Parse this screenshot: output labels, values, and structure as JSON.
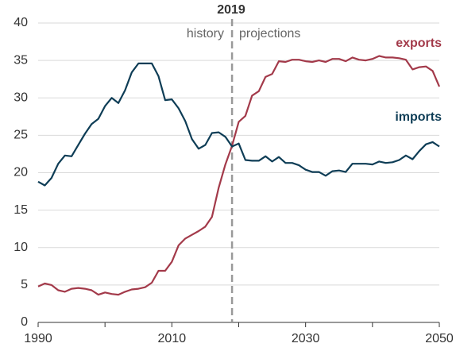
{
  "chart_data": {
    "type": "line",
    "x": [
      1990,
      1991,
      1992,
      1993,
      1994,
      1995,
      1996,
      1997,
      1998,
      1999,
      2000,
      2001,
      2002,
      2003,
      2004,
      2005,
      2006,
      2007,
      2008,
      2009,
      2010,
      2011,
      2012,
      2013,
      2014,
      2015,
      2016,
      2017,
      2018,
      2019,
      2020,
      2021,
      2022,
      2023,
      2024,
      2025,
      2026,
      2027,
      2028,
      2029,
      2030,
      2031,
      2032,
      2033,
      2034,
      2035,
      2036,
      2037,
      2038,
      2039,
      2040,
      2041,
      2042,
      2043,
      2044,
      2045,
      2046,
      2047,
      2048,
      2049,
      2050
    ],
    "series": [
      {
        "name": "exports",
        "color": "#a33a4a",
        "values": [
          4.8,
          5.2,
          5.0,
          4.3,
          4.1,
          4.5,
          4.6,
          4.5,
          4.3,
          3.7,
          4.0,
          3.8,
          3.7,
          4.1,
          4.4,
          4.5,
          4.7,
          5.3,
          6.9,
          6.9,
          8.1,
          10.3,
          11.2,
          11.7,
          12.2,
          12.8,
          14.1,
          18.0,
          21.1,
          23.6,
          26.8,
          27.6,
          30.3,
          30.9,
          32.8,
          33.2,
          34.9,
          34.8,
          35.1,
          35.1,
          34.9,
          34.8,
          35.0,
          34.8,
          35.2,
          35.2,
          34.9,
          35.4,
          35.1,
          35.0,
          35.2,
          35.6,
          35.4,
          35.4,
          35.3,
          35.1,
          33.8,
          34.1,
          34.2,
          33.6,
          31.5
        ]
      },
      {
        "name": "imports",
        "color": "#0e3d56",
        "values": [
          18.8,
          18.3,
          19.3,
          21.2,
          22.3,
          22.2,
          23.7,
          25.2,
          26.5,
          27.2,
          28.9,
          30.0,
          29.3,
          31.0,
          33.4,
          34.6,
          34.6,
          34.6,
          32.9,
          29.7,
          29.8,
          28.6,
          26.9,
          24.5,
          23.2,
          23.7,
          25.3,
          25.4,
          24.8,
          23.5,
          23.9,
          21.7,
          21.6,
          21.6,
          22.2,
          21.5,
          22.1,
          21.3,
          21.3,
          21.0,
          20.4,
          20.1,
          20.1,
          19.6,
          20.2,
          20.3,
          20.1,
          21.2,
          21.2,
          21.2,
          21.1,
          21.5,
          21.3,
          21.4,
          21.7,
          22.3,
          21.8,
          22.9,
          23.8,
          24.1,
          23.5
        ]
      }
    ],
    "xlim": [
      1990,
      2050
    ],
    "xticks": [
      1990,
      2010,
      2030,
      2050
    ],
    "xminor": [
      2000,
      2020,
      2040
    ],
    "ylim": [
      0,
      40
    ],
    "yticks": [
      0,
      5,
      10,
      15,
      20,
      25,
      30,
      35,
      40
    ],
    "grid": true,
    "divider": {
      "x": 2019,
      "label": "2019",
      "left": "history",
      "right": "projections"
    }
  }
}
